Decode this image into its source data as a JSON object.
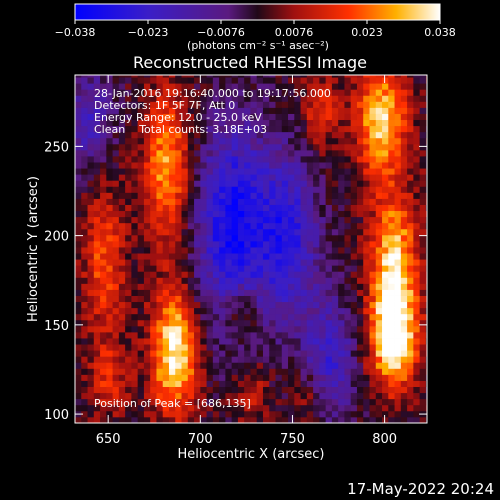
{
  "chart_data": {
    "type": "heatmap",
    "title": "Reconstructed RHESSI Image",
    "xlabel": "Heliocentric X (arcsec)",
    "ylabel": "Heliocentric Y (arcsec)",
    "xlim": [
      632,
      823
    ],
    "ylim": [
      95,
      290
    ],
    "x_ticks": [
      650,
      700,
      750,
      800
    ],
    "y_ticks": [
      100,
      150,
      200,
      250
    ],
    "colorbar": {
      "ticks": [
        "−0.038",
        "−0.023",
        "−0.0076",
        "0.0076",
        "0.023",
        "0.038"
      ],
      "min": -0.038,
      "max": 0.038,
      "units_label": "(photons cm⁻² s⁻¹ asec⁻²)"
    },
    "annotations": [
      "28-Jan-2016 19:16:40.000 to 19:17:56.000",
      "Detectors: 1F 5F 7F, Att 0",
      "Energy Range: 12.0 - 25.0 keV",
      "Clean    Total counts: 3.18E+03"
    ],
    "peak_label": "Position of Peak = [686,135]",
    "timestamp": "17-May-2022 20:24",
    "bright_sources": [
      {
        "x": 686,
        "y": 135,
        "v": 0.038,
        "sx": 9,
        "sy": 24
      },
      {
        "x": 682,
        "y": 240,
        "v": 0.028,
        "sx": 9,
        "sy": 30
      },
      {
        "x": 648,
        "y": 185,
        "v": 0.02,
        "sx": 8,
        "sy": 30
      },
      {
        "x": 650,
        "y": 120,
        "v": 0.014,
        "sx": 8,
        "sy": 14
      },
      {
        "x": 798,
        "y": 265,
        "v": 0.033,
        "sx": 10,
        "sy": 22
      },
      {
        "x": 805,
        "y": 180,
        "v": 0.036,
        "sx": 9,
        "sy": 30
      },
      {
        "x": 805,
        "y": 140,
        "v": 0.033,
        "sx": 9,
        "sy": 18
      },
      {
        "x": 765,
        "y": 270,
        "v": 0.017,
        "sx": 7,
        "sy": 14
      },
      {
        "x": 722,
        "y": 158,
        "v": 0.016,
        "sx": 7,
        "sy": 12
      },
      {
        "x": 728,
        "y": 112,
        "v": 0.012,
        "sx": 7,
        "sy": 12
      },
      {
        "x": 760,
        "y": 110,
        "v": 0.012,
        "sx": 7,
        "sy": 12
      }
    ],
    "dark_sources": [
      {
        "x": 718,
        "y": 205,
        "v": -0.034,
        "sx": 14,
        "sy": 40
      },
      {
        "x": 748,
        "y": 200,
        "v": -0.026,
        "sx": 11,
        "sy": 32
      },
      {
        "x": 770,
        "y": 130,
        "v": -0.022,
        "sx": 10,
        "sy": 25
      },
      {
        "x": 640,
        "y": 265,
        "v": -0.018,
        "sx": 9,
        "sy": 20
      }
    ]
  }
}
